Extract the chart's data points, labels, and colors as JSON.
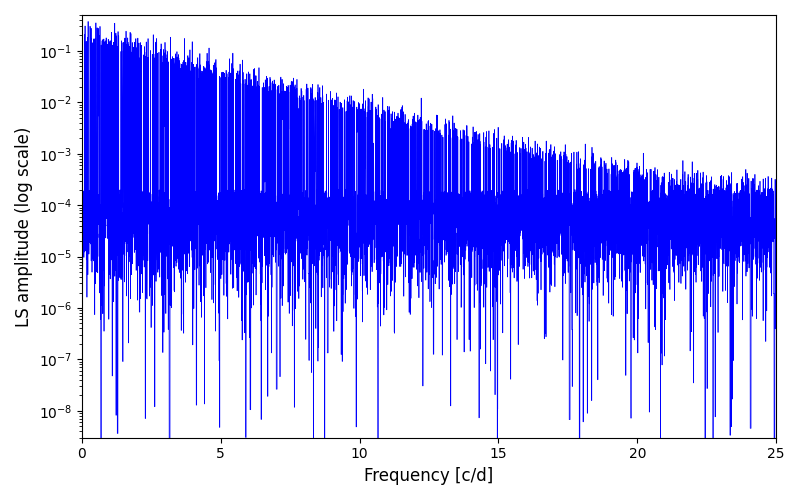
{
  "xlabel": "Frequency [c/d]",
  "ylabel": "LS amplitude (log scale)",
  "xlim": [
    0,
    25
  ],
  "ylim": [
    3e-09,
    0.5
  ],
  "line_color": "blue",
  "line_width": 0.5,
  "figsize": [
    8.0,
    5.0
  ],
  "dpi": 100,
  "freq_min": 0.0,
  "freq_max": 25.0,
  "n_points": 10000,
  "seed": 123
}
